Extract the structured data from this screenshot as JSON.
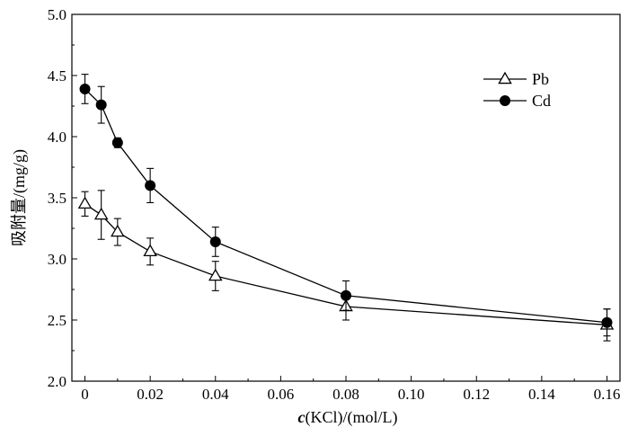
{
  "chart_data": {
    "type": "line",
    "xlabel_symbol": "c",
    "xlabel_rest": "(KCl)/(mol/L)",
    "ylabel": "吸附量/(mg/g)",
    "xlim": [
      -0.004,
      0.164
    ],
    "ylim": [
      2.0,
      5.0
    ],
    "xticks": [
      0,
      0.02,
      0.04,
      0.06,
      0.08,
      0.1,
      0.12,
      0.14,
      0.16
    ],
    "xtick_labels": [
      "0",
      "0.02",
      "0.04",
      "0.06",
      "0.08",
      "0.10",
      "0.12",
      "0.14",
      "0.16"
    ],
    "yticks": [
      2.0,
      2.5,
      3.0,
      3.5,
      4.0,
      4.5,
      5.0
    ],
    "ytick_labels": [
      "2.0",
      "2.5",
      "3.0",
      "3.5",
      "4.0",
      "4.5",
      "5.0"
    ],
    "legend_position": "top-right",
    "series": [
      {
        "name": "Pb",
        "marker": "open-triangle",
        "x": [
          0,
          0.005,
          0.01,
          0.02,
          0.04,
          0.08,
          0.16
        ],
        "y": [
          3.45,
          3.36,
          3.22,
          3.06,
          2.86,
          2.61,
          2.46
        ],
        "err": [
          0.1,
          0.2,
          0.11,
          0.11,
          0.12,
          0.11,
          0.13
        ]
      },
      {
        "name": "Cd",
        "marker": "filled-circle",
        "x": [
          0,
          0.005,
          0.01,
          0.02,
          0.04,
          0.08,
          0.16
        ],
        "y": [
          4.39,
          4.26,
          3.95,
          3.6,
          3.14,
          2.7,
          2.48
        ],
        "err": [
          0.12,
          0.15,
          0.04,
          0.14,
          0.12,
          0.12,
          0.11
        ]
      }
    ]
  }
}
